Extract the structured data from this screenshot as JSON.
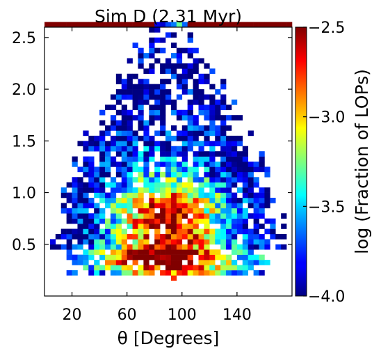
{
  "chart_data": {
    "type": "heatmap",
    "title": "Sim D (2.31 Myr)",
    "xlabel": "θ [Degrees]",
    "ylabel": "",
    "colorbar_label": "log (Fraction of LOPs)",
    "colormap": "jet",
    "xlim": [
      0,
      180
    ],
    "ylim": [
      0,
      2.6
    ],
    "clim": [
      -4.0,
      -2.5
    ],
    "x_ticks": [
      20,
      60,
      100,
      140
    ],
    "x_tick_labels": [
      "20",
      "60",
      "100",
      "140"
    ],
    "y_ticks": [
      0.5,
      1.0,
      1.5,
      2.0,
      2.5
    ],
    "y_tick_labels": [
      "0.5",
      "1.0",
      "1.5",
      "2.0",
      "2.5"
    ],
    "c_ticks": [
      -4.0,
      -3.5,
      -3.0,
      -2.5
    ],
    "c_tick_labels": [
      "−4.0",
      "−3.5",
      "−3.0",
      "−2.5"
    ],
    "bins": {
      "x_width_deg": 4,
      "y_height": 0.05,
      "x_count": 45,
      "y_count": 52
    },
    "top_row_value": -2.5,
    "top_row_hot_range_deg": [
      80,
      104
    ],
    "density_model": "log-fraction rises toward the equator (theta ~ 80–100) and toward low values (0.2–0.8); sparse, floor-level (-4.0) coverage above ~1.3 and near the poles; the top row (~2.55) is saturated at the maximum"
  }
}
